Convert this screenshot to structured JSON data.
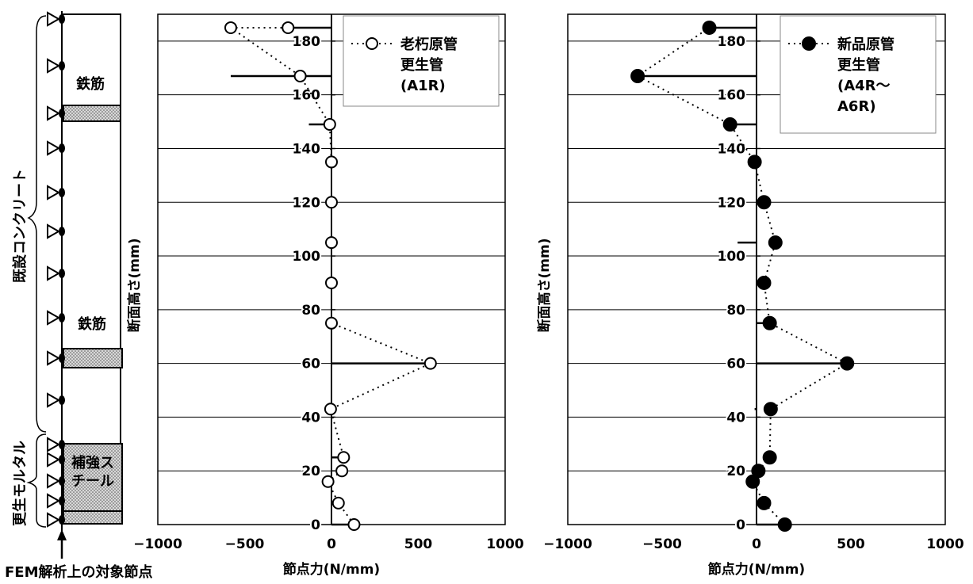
{
  "diagram": {
    "side_label_concrete": "既設コンクリート",
    "side_label_mortar": "更生モルタル",
    "rebar_label_1": "鉄筋",
    "rebar_label_2": "鉄筋",
    "reinforce_label_line1": "補強ス",
    "reinforce_label_line2": "チール",
    "bottom_caption": "FEM解析上の対象節点"
  },
  "colors": {
    "frame": "#000000",
    "grid": "#000000",
    "marker_open": "#ffffff",
    "marker_filled": "#000000",
    "hatch": "#b0b0b0"
  },
  "chart_data": [
    {
      "type": "scatter",
      "xlabel": "節点力(N/mm)",
      "ylabel": "断面高さ(mm)",
      "xlim": [
        -1000,
        1000
      ],
      "ylim": [
        0,
        190
      ],
      "xticks": [
        -1000,
        -500,
        0,
        500,
        1000
      ],
      "yticks": [
        0,
        20,
        40,
        60,
        80,
        100,
        120,
        140,
        160,
        180
      ],
      "grid": "horizontal",
      "legend_position": "top-right",
      "legend_lines": [
        "老朽原管",
        "更生管",
        "(A1R)"
      ],
      "series": [
        {
          "name": "老朽原管 更生管 (A1R)",
          "marker": "open-circle",
          "line": "dotted",
          "x": [
            130,
            40,
            -20,
            60,
            70,
            -5,
            570,
            0,
            0,
            0,
            0,
            0,
            -10,
            -180,
            -580,
            -250
          ],
          "y": [
            0,
            8,
            16,
            20,
            25,
            43,
            60,
            75,
            90,
            105,
            120,
            135,
            149,
            167,
            185,
            185
          ]
        }
      ],
      "bars": [
        {
          "y": 0,
          "x": 130
        },
        {
          "y": 25,
          "x": 60
        },
        {
          "y": 60,
          "x": 570
        },
        {
          "y": 149,
          "x": -130
        },
        {
          "y": 167,
          "x": -580
        },
        {
          "y": 185,
          "x": -230
        }
      ]
    },
    {
      "type": "scatter",
      "xlabel": "節点力(N/mm)",
      "ylabel": "断面高さ(mm)",
      "xlim": [
        -1000,
        1000
      ],
      "ylim": [
        0,
        190
      ],
      "xticks": [
        -1000,
        -500,
        0,
        500,
        1000
      ],
      "yticks": [
        0,
        20,
        40,
        60,
        80,
        100,
        120,
        140,
        160,
        180
      ],
      "grid": "horizontal",
      "legend_position": "top-right",
      "legend_lines": [
        "新品原管",
        "更生管",
        "(A4R～",
        "A6R)"
      ],
      "series": [
        {
          "name": "新品原管 更生管 (A4R～ A6R)",
          "marker": "filled-circle",
          "line": "dotted",
          "x": [
            150,
            40,
            -20,
            10,
            70,
            75,
            480,
            70,
            40,
            100,
            40,
            -10,
            -140,
            -630,
            -250
          ],
          "y": [
            0,
            8,
            16,
            20,
            25,
            43,
            60,
            75,
            90,
            105,
            120,
            135,
            149,
            167,
            185
          ]
        }
      ],
      "bars": [
        {
          "y": 0,
          "x": 150
        },
        {
          "y": 43,
          "x": -10
        },
        {
          "y": 60,
          "x": 480
        },
        {
          "y": 75,
          "x": 60
        },
        {
          "y": 105,
          "x": -100
        },
        {
          "y": 149,
          "x": -140
        },
        {
          "y": 167,
          "x": -630
        },
        {
          "y": 185,
          "x": -250
        }
      ]
    }
  ]
}
